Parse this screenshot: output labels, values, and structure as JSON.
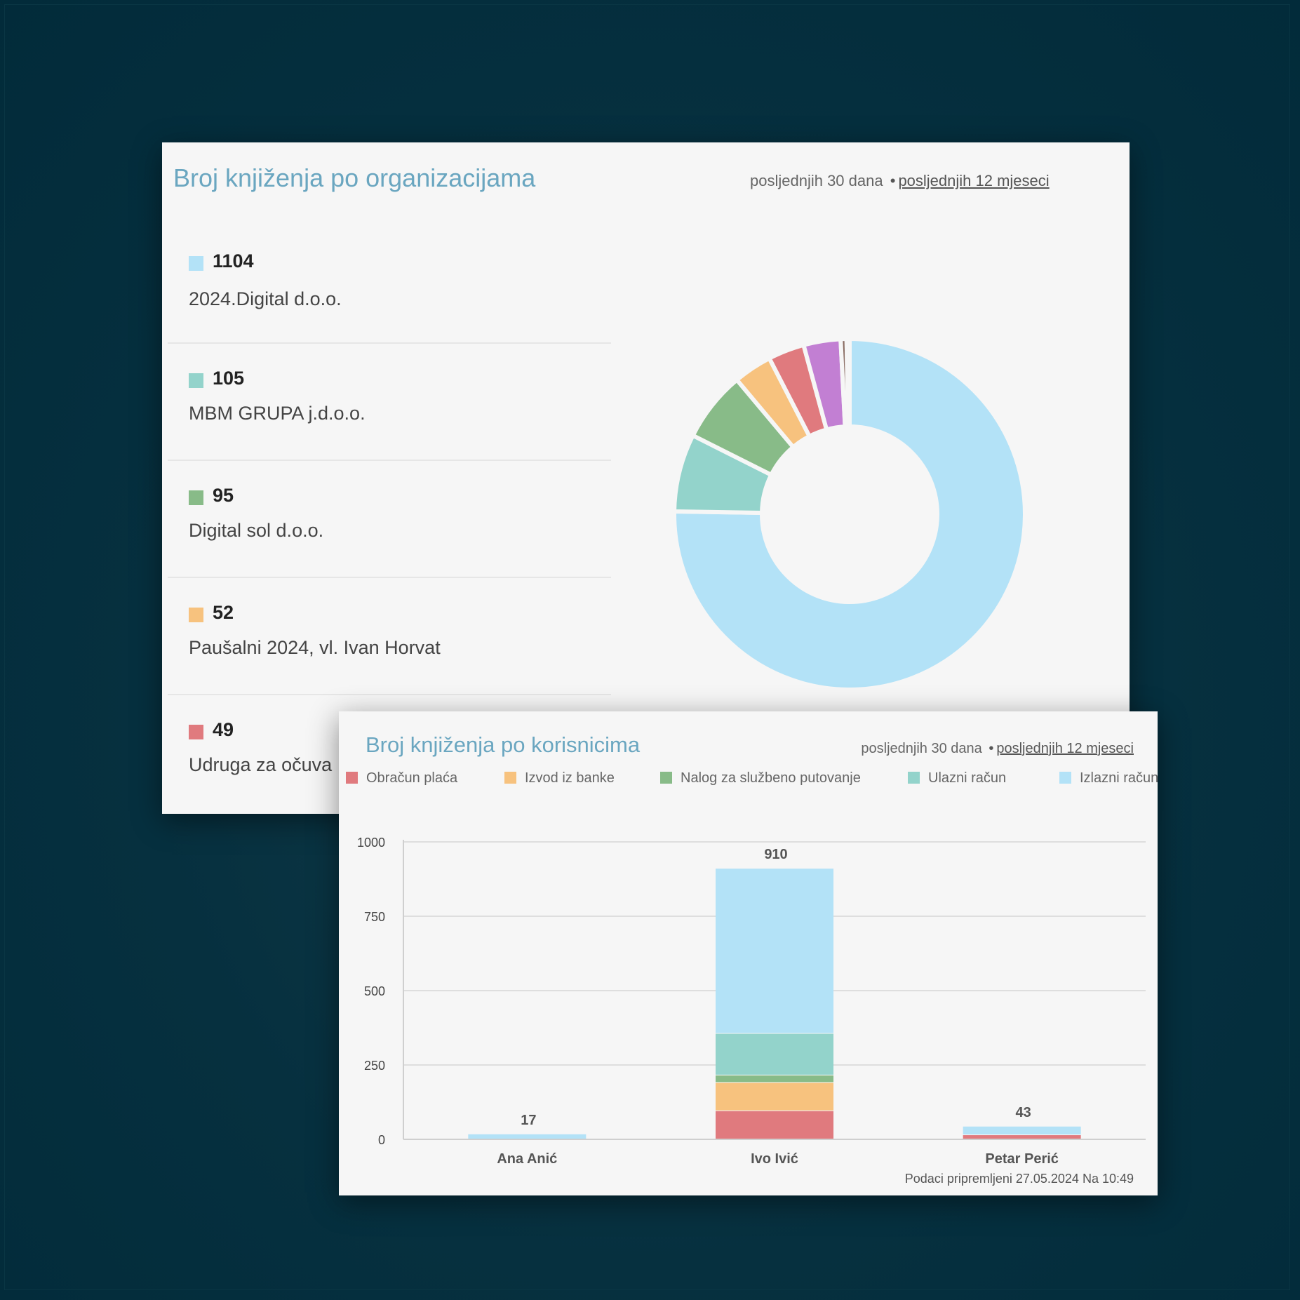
{
  "colors": {
    "obracun_placa": "#e07a7e",
    "izvod_iz_banke": "#f7c27e",
    "nalog_za_sluzbeno_putovanje": "#88bb88",
    "ulazni_racun": "#93d3cb",
    "izlazni_racun": "#b3e2f7",
    "purple": "#c27fd3",
    "brown": "#8a6d63",
    "tiny_gray": "#c9c9c9"
  },
  "org_card": {
    "title": "Broj knjiženja po organizacijama",
    "range": {
      "option_30": "posljednjih 30 dana",
      "separator": "•",
      "option_12": "posljednjih 12 mjeseci"
    },
    "items": [
      {
        "value": "1104",
        "name": "2024.Digital d.o.o.",
        "color": "#b3e2f7"
      },
      {
        "value": "105",
        "name": "MBM GRUPA j.d.o.o.",
        "color": "#93d3cb"
      },
      {
        "value": "95",
        "name": "Digital sol d.o.o.",
        "color": "#88bb88"
      },
      {
        "value": "52",
        "name": "Paušalni 2024, vl. Ivan Horvat",
        "color": "#f7c27e"
      },
      {
        "value": "49",
        "name": "Udruga za očuva",
        "color": "#e07a7e"
      }
    ]
  },
  "user_card": {
    "title": "Broj knjiženja po korisnicima",
    "range": {
      "option_30": "posljednjih 30 dana",
      "separator": "•",
      "option_12": "posljednjih 12 mjeseci"
    },
    "footnote": "Podaci pripremljeni 27.05.2024 Na 10:49"
  },
  "chart_data": [
    {
      "type": "pie",
      "title": "Broj knjiženja po organizacijama",
      "donut": true,
      "labels": [
        "2024.Digital d.o.o.",
        "MBM GRUPA j.d.o.o.",
        "Digital sol d.o.o.",
        "Paušalni 2024, vl. Ivan Horvat",
        "Udruga za očuva",
        "",
        "",
        ""
      ],
      "values": [
        1104,
        105,
        95,
        52,
        49,
        50,
        8,
        4
      ],
      "colors": [
        "#b3e2f7",
        "#93d3cb",
        "#88bb88",
        "#f7c27e",
        "#e07a7e",
        "#c27fd3",
        "#8a6d63",
        "#c9c9c9"
      ]
    },
    {
      "type": "bar",
      "stacked": true,
      "title": "Broj knjiženja po korisnicima",
      "categories": [
        "Ana Anić",
        "Ivo Ivić",
        "Petar Perić"
      ],
      "totals": [
        17,
        910,
        43
      ],
      "ylim": [
        0,
        1000
      ],
      "yticks": [
        0,
        250,
        500,
        750,
        1000
      ],
      "grid": true,
      "legend_position": "top",
      "series": [
        {
          "name": "Obračun plaća",
          "color": "#e07a7e",
          "values": [
            0,
            95,
            14
          ]
        },
        {
          "name": "Izvod iz banke",
          "color": "#f7c27e",
          "values": [
            0,
            95,
            0
          ]
        },
        {
          "name": "Nalog za službeno putovanje",
          "color": "#88bb88",
          "values": [
            0,
            25,
            0
          ]
        },
        {
          "name": "Ulazni račun",
          "color": "#93d3cb",
          "values": [
            0,
            140,
            0
          ]
        },
        {
          "name": "Izlazni račun",
          "color": "#b3e2f7",
          "values": [
            17,
            555,
            29
          ]
        }
      ]
    }
  ]
}
